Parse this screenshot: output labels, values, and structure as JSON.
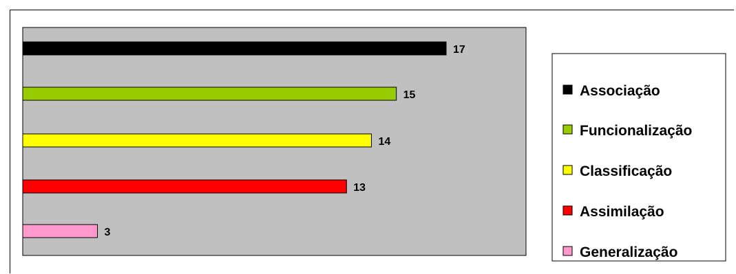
{
  "chart_data": {
    "type": "bar",
    "orientation": "horizontal",
    "categories": [
      "Associação",
      "Funcionalização",
      "Classificação",
      "Assimilação",
      "Generalização"
    ],
    "values": [
      17,
      15,
      14,
      13,
      3
    ],
    "colors": [
      "#000000",
      "#99cc00",
      "#ffff00",
      "#ff0000",
      "#ff99cc"
    ],
    "xlim": [
      0,
      20
    ],
    "plot_background": "#c0c0c0",
    "legend_position": "right",
    "grid": false,
    "data_labels": true
  }
}
